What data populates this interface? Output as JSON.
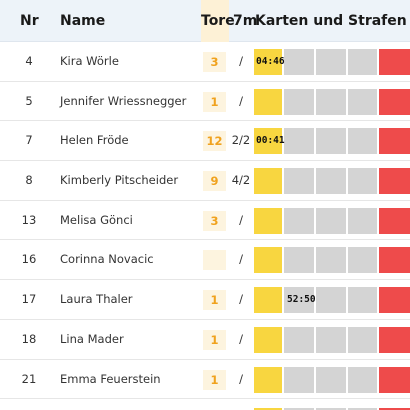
{
  "colors": {
    "header_bg": "#edf3f9",
    "tore_accent": "#f0a21e",
    "tore_bg": "#fdf4df",
    "yellow_card": "#f8d640",
    "penalty_slot": "#d4d4d4",
    "red_card": "#ee4b4b"
  },
  "header": {
    "nr": "Nr",
    "name": "Name",
    "tore": "Tore",
    "sevenm": "7m",
    "karten": "Karten und Strafen"
  },
  "players": [
    {
      "nr": "4",
      "name": "Kira Wörle",
      "tore": "3",
      "sevenm": "/",
      "yellow": true,
      "time_yellow": "04:46",
      "time_s1": ""
    },
    {
      "nr": "5",
      "name": "Jennifer Wriessnegger",
      "tore": "1",
      "sevenm": "/",
      "yellow": true,
      "time_yellow": "",
      "time_s1": ""
    },
    {
      "nr": "7",
      "name": "Helen Fröde",
      "tore": "12",
      "sevenm": "2/2",
      "yellow": true,
      "time_yellow": "00:41",
      "time_s1": ""
    },
    {
      "nr": "8",
      "name": "Kimberly Pitscheider",
      "tore": "9",
      "sevenm": "4/2",
      "yellow": true,
      "time_yellow": "",
      "time_s1": ""
    },
    {
      "nr": "13",
      "name": "Melisa Gönci",
      "tore": "3",
      "sevenm": "/",
      "yellow": true,
      "time_yellow": "",
      "time_s1": ""
    },
    {
      "nr": "16",
      "name": "Corinna Novacic",
      "tore": "",
      "sevenm": "/",
      "yellow": true,
      "time_yellow": "",
      "time_s1": ""
    },
    {
      "nr": "17",
      "name": "Laura Thaler",
      "tore": "1",
      "sevenm": "/",
      "yellow": true,
      "time_yellow": "",
      "time_s1": "52:50"
    },
    {
      "nr": "18",
      "name": "Lina Mader",
      "tore": "1",
      "sevenm": "/",
      "yellow": true,
      "time_yellow": "",
      "time_s1": ""
    },
    {
      "nr": "21",
      "name": "Emma Feuerstein",
      "tore": "1",
      "sevenm": "/",
      "yellow": true,
      "time_yellow": "",
      "time_s1": ""
    }
  ]
}
